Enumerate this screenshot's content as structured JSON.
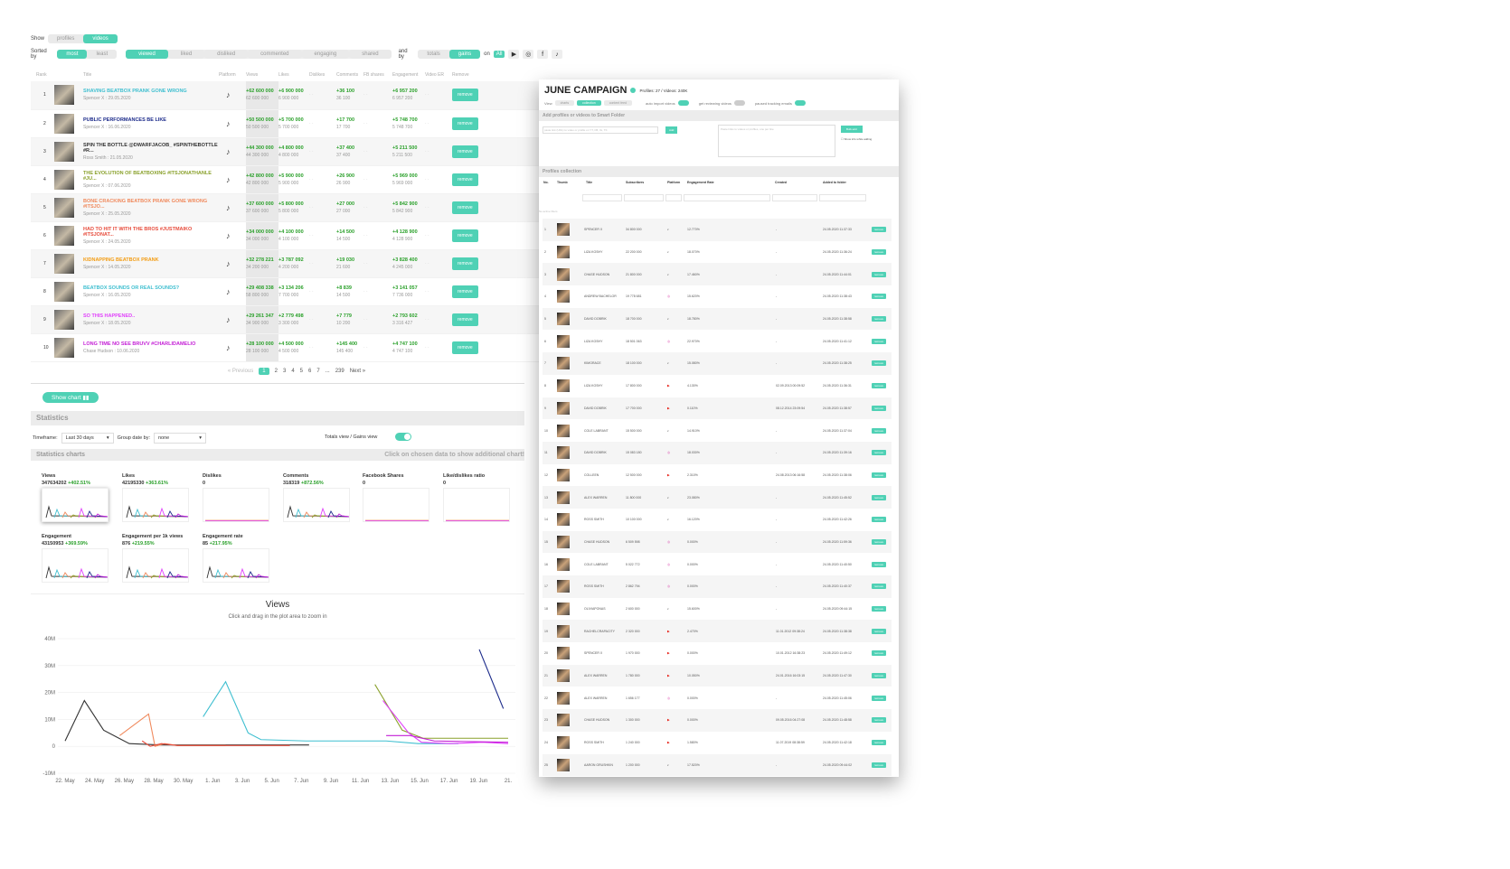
{
  "left": {
    "show_label": "Show",
    "show_options": [
      "profiles",
      "videos"
    ],
    "sorted_by_label": "Sorted by",
    "sort_dir": [
      "most",
      "least"
    ],
    "sort_fields": [
      "viewed",
      "liked",
      "disliked",
      "commented",
      "engaging",
      "shared"
    ],
    "and_by_label": "and by",
    "and_by_options": [
      "totals",
      "gains"
    ],
    "on_label": "on",
    "platform_all": "All",
    "columns": [
      "Rank",
      "",
      "Title",
      "Platform",
      "Views",
      "Likes",
      "Dislikes",
      "Comments",
      "FB shares",
      "Engagement",
      "Video ER",
      "Remove"
    ],
    "rows": [
      {
        "rank": "1",
        "title": "SHAVING BEATBOX PRANK GONE WRONG",
        "meta": "Spencer X : 29.05.2020",
        "color": "#3fbfd0",
        "views": "+62 600 000",
        "views_t": "62 600 000",
        "likes": "+6 900 000",
        "likes_t": "6 900 000",
        "comments": "+36 100",
        "comments_t": "36 100",
        "eng": "+6 957 200",
        "eng_t": "6 957 200"
      },
      {
        "rank": "2",
        "title": "PUBLIC PERFORMANCES BE LIKE",
        "meta": "Spencer X : 16.06.2020",
        "color": "#1b2a8a",
        "views": "+50 500 000",
        "views_t": "50 500 000",
        "likes": "+5 700 000",
        "likes_t": "5 700 000",
        "comments": "+17 700",
        "comments_t": "17 700",
        "eng": "+5 748 700",
        "eng_t": "5 748 700"
      },
      {
        "rank": "3",
        "title": "SPIN THE BOTTLE @DWARFJACOB_ #SPINTHEBOTTLE #R...",
        "meta": "Ross Smith : 21.05.2020",
        "color": "#333333",
        "views": "+44 300 000",
        "views_t": "44 300 000",
        "likes": "+4 800 000",
        "likes_t": "4 800 000",
        "comments": "+37 400",
        "comments_t": "37 400",
        "eng": "+5 211 500",
        "eng_t": "5 211 500"
      },
      {
        "rank": "4",
        "title": "THE EVOLUTION OF BEATBOXING #ITSJONATHANLE #JU...",
        "meta": "Spencer X : 07.06.2020",
        "color": "#8aa12c",
        "views": "+42 800 000",
        "views_t": "42 800 000",
        "likes": "+5 900 000",
        "likes_t": "5 900 000",
        "comments": "+26 900",
        "comments_t": "26 900",
        "eng": "+5 969 000",
        "eng_t": "5 969 000"
      },
      {
        "rank": "5",
        "title": "BONE CRACKING BEATBOX PRANK GONE WRONG #ITSJO...",
        "meta": "Spencer X : 25.05.2020",
        "color": "#f08a5d",
        "views": "+37 600 000",
        "views_t": "37 600 000",
        "likes": "+5 800 000",
        "likes_t": "5 800 000",
        "comments": "+27 000",
        "comments_t": "27 000",
        "eng": "+5 842 900",
        "eng_t": "5 842 900"
      },
      {
        "rank": "6",
        "title": "HAD TO HIT IT WITH THE BROS #JUSTMAIKO #ITSJONAT...",
        "meta": "Spencer X : 24.05.2020",
        "color": "#e74c3c",
        "views": "+34 000 000",
        "views_t": "34 000 000",
        "likes": "+4 100 000",
        "likes_t": "4 100 000",
        "comments": "+14 500",
        "comments_t": "14 500",
        "eng": "+4 128 900",
        "eng_t": "4 128 900"
      },
      {
        "rank": "7",
        "title": "KIDNAPPING BEATBOX PRANK",
        "meta": "Spencer X : 14.05.2020",
        "color": "#f39c12",
        "views": "+32 278 221",
        "views_t": "34 200 000",
        "likes": "+3 787 092",
        "likes_t": "4 200 000",
        "comments": "+19 030",
        "comments_t": "21 600",
        "eng": "+3 828 400",
        "eng_t": "4 245 000"
      },
      {
        "rank": "8",
        "title": "BEATBOX SOUNDS OR REAL SOUNDS?",
        "meta": "Spencer X : 16.05.2020",
        "color": "#3fbfd0",
        "views": "+29 408 338",
        "views_t": "58 800 000",
        "likes": "+3 134 206",
        "likes_t": "7 700 000",
        "comments": "+8 839",
        "comments_t": "14 500",
        "eng": "+3 141 057",
        "eng_t": "7 736 000"
      },
      {
        "rank": "9",
        "title": "SO THIS HAPPENED..",
        "meta": "Spencer X : 18.05.2020",
        "color": "#e040fb",
        "views": "+29 261 347",
        "views_t": "34 900 000",
        "likes": "+2 779 498",
        "likes_t": "3 300 000",
        "comments": "+7 779",
        "comments_t": "10 200",
        "eng": "+2 793 602",
        "eng_t": "3 316 427"
      },
      {
        "rank": "10",
        "title": "LONG TIME NO SEE BRUVV #CHARLIDAMELIO",
        "meta": "Chase Hudson : 10.06.2020",
        "color": "#c41fd6",
        "views": "+28 100 000",
        "views_t": "28 100 000",
        "likes": "+4 500 000",
        "likes_t": "4 500 000",
        "comments": "+145 400",
        "comments_t": "145 400",
        "eng": "+4 747 100",
        "eng_t": "4 747 100"
      }
    ],
    "remove_label": "remove",
    "pager": {
      "prev": "« Previous",
      "pages": [
        "1",
        "2",
        "3",
        "4",
        "5",
        "6",
        "7",
        "...",
        "239"
      ],
      "next": "Next »"
    },
    "show_chart": "Show chart",
    "statistics": "Statistics",
    "timeframe_label": "Timeframe:",
    "timeframe_value": "Last 30 days",
    "group_label": "Group date by:",
    "group_value": "none",
    "totals_gains_label": "Totals view / Gains view",
    "stat_charts": "Statistics charts",
    "stat_hint": "Click on chosen data to show additional chart!",
    "minis": [
      {
        "label": "Views",
        "value": "347634202",
        "change": "+402.51%"
      },
      {
        "label": "Likes",
        "value": "42195330",
        "change": "+363.61%"
      },
      {
        "label": "Dislikes",
        "value": "0",
        "change": ""
      },
      {
        "label": "Comments",
        "value": "318319",
        "change": "+872.56%"
      },
      {
        "label": "Facebook Shares",
        "value": "0",
        "change": ""
      },
      {
        "label": "Like/dislikes ratio",
        "value": "0",
        "change": ""
      },
      {
        "label": "Engagement",
        "value": "43150953",
        "change": "+369.59%"
      },
      {
        "label": "Engagement per 1k views",
        "value": "876",
        "change": "+219.55%"
      },
      {
        "label": "Engagement rate",
        "value": "85",
        "change": "+217.95%"
      }
    ]
  },
  "chart_data": {
    "type": "line",
    "title": "Views",
    "subtitle": "Click and drag in the plot area to zoom in",
    "x": [
      "22. May",
      "24. May",
      "26. May",
      "28. May",
      "30. May",
      "1. Jun",
      "3. Jun",
      "5. Jun",
      "7. Jun",
      "9. Jun",
      "11. Jun",
      "13. Jun",
      "15. Jun",
      "17. Jun",
      "19. Jun",
      "21."
    ],
    "yticks": [
      "40M",
      "30M",
      "20M",
      "10M",
      "0",
      "-10M"
    ],
    "ylim": [
      -10,
      40
    ],
    "series": [
      {
        "color": "#333333",
        "points": [
          [
            0,
            2
          ],
          [
            1.2,
            17
          ],
          [
            2.4,
            6
          ],
          [
            4,
            1
          ],
          [
            6,
            0.5
          ],
          [
            8,
            0.5
          ],
          [
            10,
            0.5
          ],
          [
            12,
            0.5
          ],
          [
            14,
            0.5
          ],
          [
            15.2,
            0.5
          ]
        ]
      },
      {
        "color": "#3fbfd0",
        "points": [
          [
            8.6,
            11
          ],
          [
            10,
            24
          ],
          [
            11.4,
            5
          ],
          [
            12.2,
            2.5
          ],
          [
            15,
            2
          ],
          [
            17,
            2
          ],
          [
            20,
            2
          ],
          [
            22,
            1
          ],
          [
            24.5,
            1
          ]
        ]
      },
      {
        "color": "#f08a5d",
        "points": [
          [
            3.4,
            4
          ],
          [
            5.2,
            12
          ],
          [
            5.6,
            0
          ],
          [
            6.2,
            1
          ],
          [
            7,
            0.3
          ],
          [
            10,
            0.3
          ]
        ]
      },
      {
        "color": "#8aa12c",
        "points": [
          [
            19.3,
            23
          ],
          [
            21,
            6
          ],
          [
            22.3,
            3
          ],
          [
            26,
            3
          ],
          [
            27.6,
            3
          ]
        ]
      },
      {
        "color": "#e040fb",
        "points": [
          [
            19.8,
            17
          ],
          [
            21.4,
            5
          ],
          [
            22.2,
            1.5
          ],
          [
            24,
            1
          ],
          [
            26,
            1.5
          ],
          [
            27.6,
            1
          ]
        ]
      },
      {
        "color": "#1b2a8a",
        "points": [
          [
            25.8,
            36
          ],
          [
            27.3,
            14
          ]
        ]
      },
      {
        "color": "#c41fd6",
        "points": [
          [
            20,
            4
          ],
          [
            21.5,
            4
          ],
          [
            23,
            2
          ],
          [
            27.6,
            1.5
          ]
        ]
      },
      {
        "color": "#e74c3c",
        "points": [
          [
            4.8,
            2
          ],
          [
            5.3,
            0
          ],
          [
            6,
            1
          ],
          [
            7,
            0.3
          ],
          [
            14,
            0.3
          ]
        ]
      }
    ]
  },
  "right": {
    "title": "JUNE CAMPAIGN",
    "meta": "Profiles: 27 / Videos: 240K",
    "view_label": "View",
    "view_tabs": [
      "charts",
      "collection",
      "content feed"
    ],
    "toggles": [
      "auto import videos",
      "get reviewing videos",
      "paused tracking emails"
    ],
    "add_title": "Add profiles or videos to Smart Folder",
    "add_placeholder": "paste link (URL) to video or profile on YT, FB, IG, TK",
    "add_btn": "Add",
    "bulk_placeholder": "Paste links to videos or profiles, one per line",
    "bulk_btn": "Bulk add",
    "show_info": "Show info while adding",
    "collection_title": "Profiles collection",
    "cols": [
      "No.",
      "Thumb",
      "Title",
      "Subscribers",
      "Platform",
      "Engagement Rate",
      "Created",
      "Added to folder"
    ],
    "no_filters": "No active filters",
    "profiles": [
      {
        "no": "1",
        "name": "SPENCER X",
        "subs": "34 800 000",
        "plat": "tiktok",
        "er": "12.770%",
        "created": "-",
        "added": "24.05.2020 11:37:33"
      },
      {
        "no": "2",
        "name": "LIZA KOSHY",
        "subs": "22 200 000",
        "plat": "tiktok",
        "er": "18.070%",
        "created": "-",
        "added": "24.05.2020 11:36:24"
      },
      {
        "no": "3",
        "name": "CHASE HUDSON",
        "subs": "21 800 000",
        "plat": "tiktok",
        "er": "17.460%",
        "created": "-",
        "added": "24.05.2020 11:44:01"
      },
      {
        "no": "4",
        "name": "ANDREW BACHELOR",
        "subs": "19 778 681",
        "plat": "instagram",
        "er": "15.620%",
        "created": "-",
        "added": "24.05.2020 11:38:43"
      },
      {
        "no": "5",
        "name": "DAVID DOBRIK",
        "subs": "18 700 000",
        "plat": "tiktok",
        "er": "18.780%",
        "created": "-",
        "added": "24.05.2020 11:38:58"
      },
      {
        "no": "6",
        "name": "LIZA KOSHY",
        "subs": "18 501 063",
        "plat": "instagram",
        "er": "22.970%",
        "created": "-",
        "added": "24.05.2020 11:41:12"
      },
      {
        "no": "7",
        "name": "KIMGRACE",
        "subs": "18 100 000",
        "plat": "tiktok",
        "er": "15.080%",
        "created": "-",
        "added": "24.05.2020 11:38:25"
      },
      {
        "no": "8",
        "name": "LIZA KOSHY",
        "subs": "17 800 000",
        "plat": "youtube",
        "er": "4.130%",
        "created": "02.09.2013 00:09:52",
        "added": "24.05.2020 11:36:31"
      },
      {
        "no": "9",
        "name": "DAVID DOBRIK",
        "subs": "17 700 000",
        "plat": "youtube",
        "er": "0.110%",
        "created": "08.12.2014 23:09:54",
        "added": "24.05.2020 11:38:57"
      },
      {
        "no": "10",
        "name": "COLE LABRANT",
        "subs": "15 500 000",
        "plat": "tiktok",
        "er": "14.910%",
        "created": "-",
        "added": "24.05.2020 11:37:04"
      },
      {
        "no": "11",
        "name": "DAVID DOBRIK",
        "subs": "15 083 180",
        "plat": "instagram",
        "er": "18.030%",
        "created": "-",
        "added": "24.05.2020 11:39:16"
      },
      {
        "no": "12",
        "name": "COLLEEN",
        "subs": "12 500 000",
        "plat": "youtube",
        "er": "2.310%",
        "created": "24.08.2013 06:16:58",
        "added": "24.05.2020 11:38:06"
      },
      {
        "no": "13",
        "name": "ALEX WARREN",
        "subs": "11 800 000",
        "plat": "tiktok",
        "er": "23.080%",
        "created": "-",
        "added": "24.05.2020 11:45:52"
      },
      {
        "no": "14",
        "name": "ROSS SMITH",
        "subs": "10 100 000",
        "plat": "tiktok",
        "er": "16.120%",
        "created": "-",
        "added": "24.05.2020 11:42:26"
      },
      {
        "no": "15",
        "name": "CHASE HUDSON",
        "subs": "6 509 598",
        "plat": "instagram",
        "er": "0.000%",
        "created": "-",
        "added": "24.05.2020 11:59:36"
      },
      {
        "no": "16",
        "name": "COLE LABRANT",
        "subs": "5 022 772",
        "plat": "instagram",
        "er": "0.000%",
        "created": "-",
        "added": "24.05.2020 11:40:50"
      },
      {
        "no": "17",
        "name": "ROSS SMITH",
        "subs": "2 862 794",
        "plat": "instagram",
        "er": "0.000%",
        "created": "-",
        "added": "24.05.2020 11:40:37"
      },
      {
        "no": "18",
        "name": "OLIVIAPONAS",
        "subs": "2 600 000",
        "plat": "tiktok",
        "er": "15.600%",
        "created": "-",
        "added": "24.05.2020 09:44:15"
      },
      {
        "no": "19",
        "name": "RACHELCRAPACITY",
        "subs": "2 320 000",
        "plat": "youtube",
        "er": "2.470%",
        "created": "11.01.2012 09:38:24",
        "added": "24.05.2020 11:38:38"
      },
      {
        "no": "20",
        "name": "SPENCER X",
        "subs": "1 970 000",
        "plat": "youtube",
        "er": "0.000%",
        "created": "10.01.2012 16:38:23",
        "added": "24.05.2020 11:49:12"
      },
      {
        "no": "21",
        "name": "ALEX WARREN",
        "subs": "1 780 000",
        "plat": "youtube",
        "er": "10.050%",
        "created": "24.01.2016 16:03:15",
        "added": "24.05.2020 11:47:30"
      },
      {
        "no": "22",
        "name": "ALEX WARREN",
        "subs": "1 656 177",
        "plat": "instagram",
        "er": "0.000%",
        "created": "-",
        "added": "24.05.2020 11:45:06"
      },
      {
        "no": "23",
        "name": "CHASE HUDSON",
        "subs": "1 300 000",
        "plat": "youtube",
        "er": "0.000%",
        "created": "09.05.2016 04:27:08",
        "added": "24.05.2020 11:48:58"
      },
      {
        "no": "24",
        "name": "ROSS SMITH",
        "subs": "1 240 000",
        "plat": "youtube",
        "er": "1.580%",
        "created": "11.07.2019 08:38:59",
        "added": "24.05.2020 11:42:18"
      },
      {
        "no": "25",
        "name": "AARON GRUSHKIN",
        "subs": "1 200 000",
        "plat": "tiktok",
        "er": "17.520%",
        "created": "-",
        "added": "24.05.2020 09:44:02"
      }
    ]
  }
}
